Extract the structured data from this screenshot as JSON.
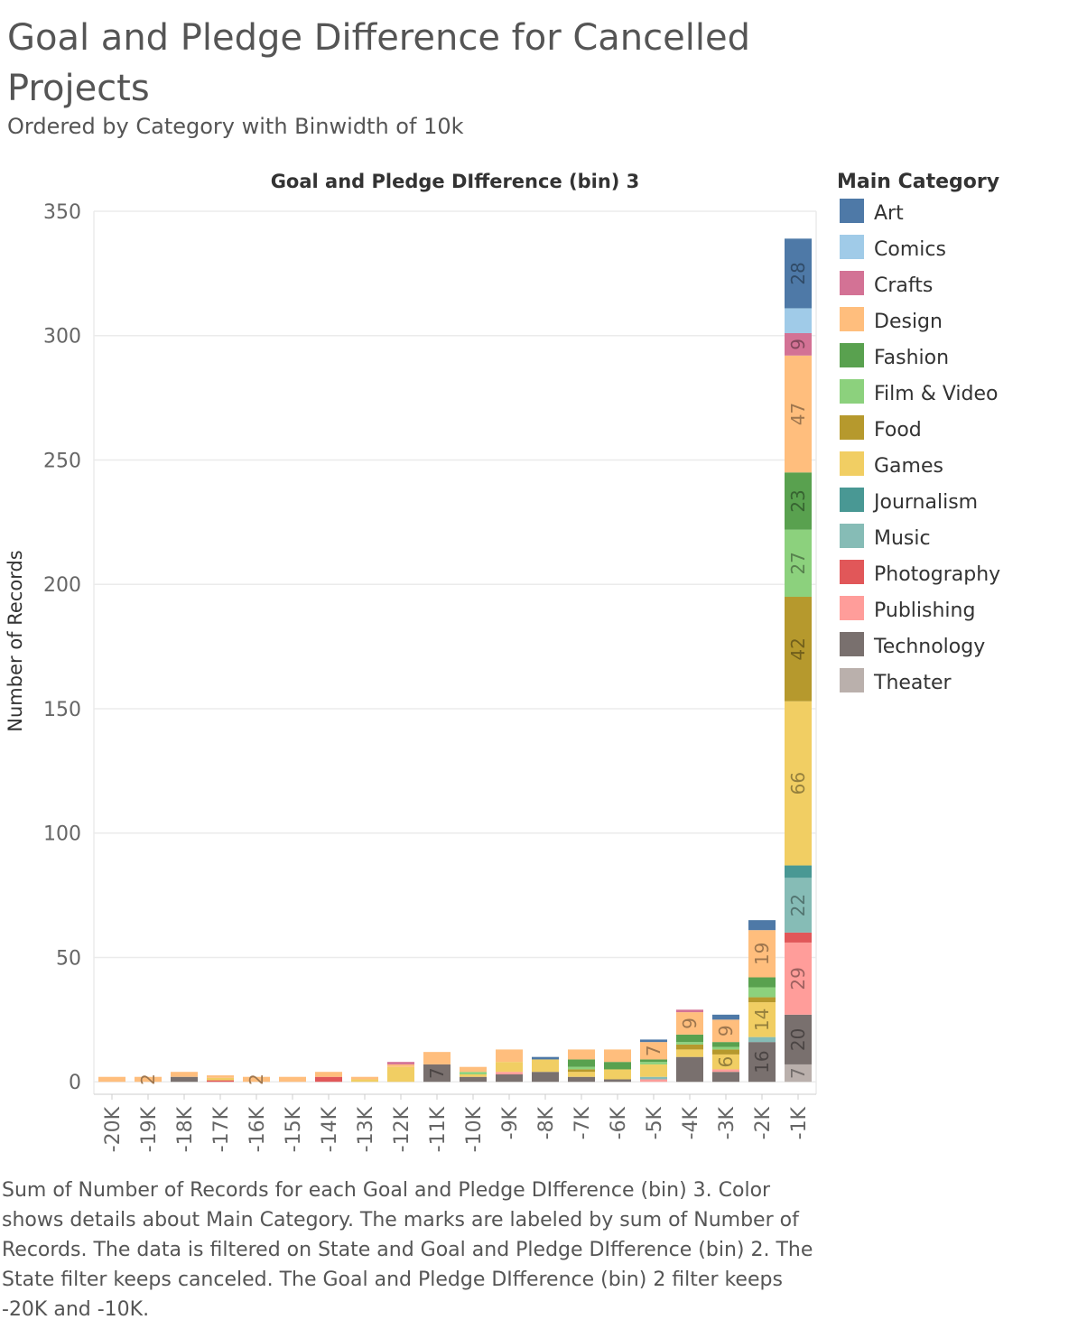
{
  "title": "Goal and Pledge Difference for Cancelled Projects",
  "subtitle": "Ordered by Category with Binwidth of 10k",
  "caption": "Sum of Number of Records for each Goal and Pledge DIfference (bin) 3.  Color shows details about Main Category.  The marks are labeled by sum of Number of Records. The data is filtered on State and Goal and Pledge DIfference (bin) 2. The State filter keeps canceled. The Goal and Pledge DIfference (bin) 2 filter keeps -20K and -10K.",
  "colors": {
    "Art": "#4e79a7",
    "Comics": "#a0cbe8",
    "Crafts": "#d37295",
    "Design": "#ffbe7d",
    "Fashion": "#59a14f",
    "Film & Video": "#8cd17d",
    "Food": "#b6992d",
    "Games": "#f1ce63",
    "Journalism": "#499894",
    "Music": "#86bcb6",
    "Photography": "#e15759",
    "Publishing": "#ff9d9a",
    "Technology": "#79706e",
    "Theater": "#bab0ac"
  },
  "chart_data": {
    "type": "bar",
    "stacked": true,
    "title": "Goal and Pledge DIfference (bin) 3",
    "xlabel": "",
    "ylabel": "Number of Records",
    "ylim": [
      -5,
      350
    ],
    "yticks": [
      0,
      50,
      100,
      150,
      200,
      250,
      300,
      350
    ],
    "grid": true,
    "legend": {
      "title": "Main Category",
      "position": "right"
    },
    "categories": [
      "-20K",
      "-19K",
      "-18K",
      "-17K",
      "-16K",
      "-15K",
      "-14K",
      "-13K",
      "-12K",
      "-11K",
      "-10K",
      "-9K",
      "-8K",
      "-7K",
      "-6K",
      "-5K",
      "-4K",
      "-3K",
      "-2K",
      "-1K"
    ],
    "series": [
      {
        "name": "Theater",
        "values": [
          0,
          0,
          0,
          0,
          0,
          0,
          0,
          0,
          0,
          0,
          0,
          0,
          0,
          0,
          0,
          0,
          0,
          0,
          0,
          7
        ]
      },
      {
        "name": "Technology",
        "values": [
          0,
          0,
          2,
          0,
          0,
          0,
          0,
          0,
          0,
          7,
          2,
          3,
          4,
          2,
          1,
          0,
          10,
          4,
          16,
          20
        ]
      },
      {
        "name": "Publishing",
        "values": [
          0,
          0,
          0,
          0,
          0,
          0,
          0,
          0,
          0,
          0,
          0,
          1,
          0,
          0,
          0,
          1,
          0,
          1,
          0,
          29
        ]
      },
      {
        "name": "Photography",
        "values": [
          0,
          0,
          0,
          0.6,
          0,
          0,
          2,
          0,
          0,
          0,
          0,
          0,
          0,
          0,
          0,
          0,
          0,
          0,
          0,
          4
        ]
      },
      {
        "name": "Music",
        "values": [
          0,
          0,
          0,
          0,
          0,
          0,
          0,
          0,
          0,
          0,
          0,
          0,
          0,
          0,
          0,
          1,
          0,
          0,
          2,
          22
        ]
      },
      {
        "name": "Journalism",
        "values": [
          0,
          0,
          0,
          0,
          0,
          0,
          0,
          0,
          0,
          0,
          0,
          0,
          0,
          0,
          0,
          0,
          0,
          0,
          0,
          5
        ]
      },
      {
        "name": "Games",
        "values": [
          0,
          0,
          0,
          1,
          0,
          0,
          0,
          1,
          6,
          0,
          1,
          4,
          5,
          2,
          4,
          5,
          3,
          6,
          14,
          66
        ]
      },
      {
        "name": "Food",
        "values": [
          0,
          0,
          0,
          0,
          0,
          0,
          0,
          0,
          0,
          0,
          0,
          0,
          0,
          1,
          0,
          0,
          2,
          2,
          2,
          42
        ]
      },
      {
        "name": "Film & Video",
        "values": [
          0,
          0,
          0,
          0,
          0,
          0,
          0,
          0,
          0,
          0,
          1,
          0,
          0,
          1,
          0,
          1,
          1,
          1,
          4,
          27
        ]
      },
      {
        "name": "Fashion",
        "values": [
          0,
          0,
          0,
          0,
          0,
          0,
          0,
          0,
          0,
          0,
          0,
          0,
          0,
          3,
          3,
          1,
          3,
          2,
          4,
          23
        ]
      },
      {
        "name": "Design",
        "values": [
          2,
          2,
          2,
          1,
          2,
          2,
          2,
          1,
          1,
          5,
          2,
          5,
          0,
          4,
          5,
          7,
          9,
          9,
          19,
          47
        ]
      },
      {
        "name": "Crafts",
        "values": [
          0,
          0,
          0,
          0,
          0,
          0,
          0,
          0,
          1,
          0,
          0,
          0,
          0,
          0,
          0,
          0,
          1,
          0,
          0,
          9
        ]
      },
      {
        "name": "Comics",
        "values": [
          0,
          0,
          0,
          0,
          0,
          0,
          0,
          0,
          0,
          0,
          0,
          0,
          0,
          0,
          0,
          0,
          0,
          0,
          0,
          10
        ]
      },
      {
        "name": "Art",
        "values": [
          0,
          0,
          0,
          0,
          0,
          0,
          0,
          0,
          0,
          0,
          0,
          0,
          1,
          0,
          0,
          1,
          0,
          2,
          4,
          28
        ]
      }
    ],
    "data_labels": [
      {
        "category": "-19K",
        "series": "Design",
        "text": "2"
      },
      {
        "category": "-16K",
        "series": "Design",
        "text": "2"
      },
      {
        "category": "-11K",
        "series": "Technology",
        "text": "7"
      },
      {
        "category": "-5K",
        "series": "Design",
        "text": "7"
      },
      {
        "category": "-4K",
        "series": "Design",
        "text": "9"
      },
      {
        "category": "-3K",
        "series": "Games",
        "text": "6"
      },
      {
        "category": "-3K",
        "series": "Design",
        "text": "9"
      },
      {
        "category": "-2K",
        "series": "Technology",
        "text": "16"
      },
      {
        "category": "-2K",
        "series": "Games",
        "text": "14"
      },
      {
        "category": "-2K",
        "series": "Design",
        "text": "19"
      },
      {
        "category": "-1K",
        "series": "Theater",
        "text": "7"
      },
      {
        "category": "-1K",
        "series": "Technology",
        "text": "20"
      },
      {
        "category": "-1K",
        "series": "Publishing",
        "text": "29"
      },
      {
        "category": "-1K",
        "series": "Music",
        "text": "22"
      },
      {
        "category": "-1K",
        "series": "Games",
        "text": "66"
      },
      {
        "category": "-1K",
        "series": "Food",
        "text": "42"
      },
      {
        "category": "-1K",
        "series": "Film & Video",
        "text": "27"
      },
      {
        "category": "-1K",
        "series": "Fashion",
        "text": "23"
      },
      {
        "category": "-1K",
        "series": "Design",
        "text": "47"
      },
      {
        "category": "-1K",
        "series": "Crafts",
        "text": "9"
      },
      {
        "category": "-1K",
        "series": "Art",
        "text": "28"
      }
    ]
  }
}
